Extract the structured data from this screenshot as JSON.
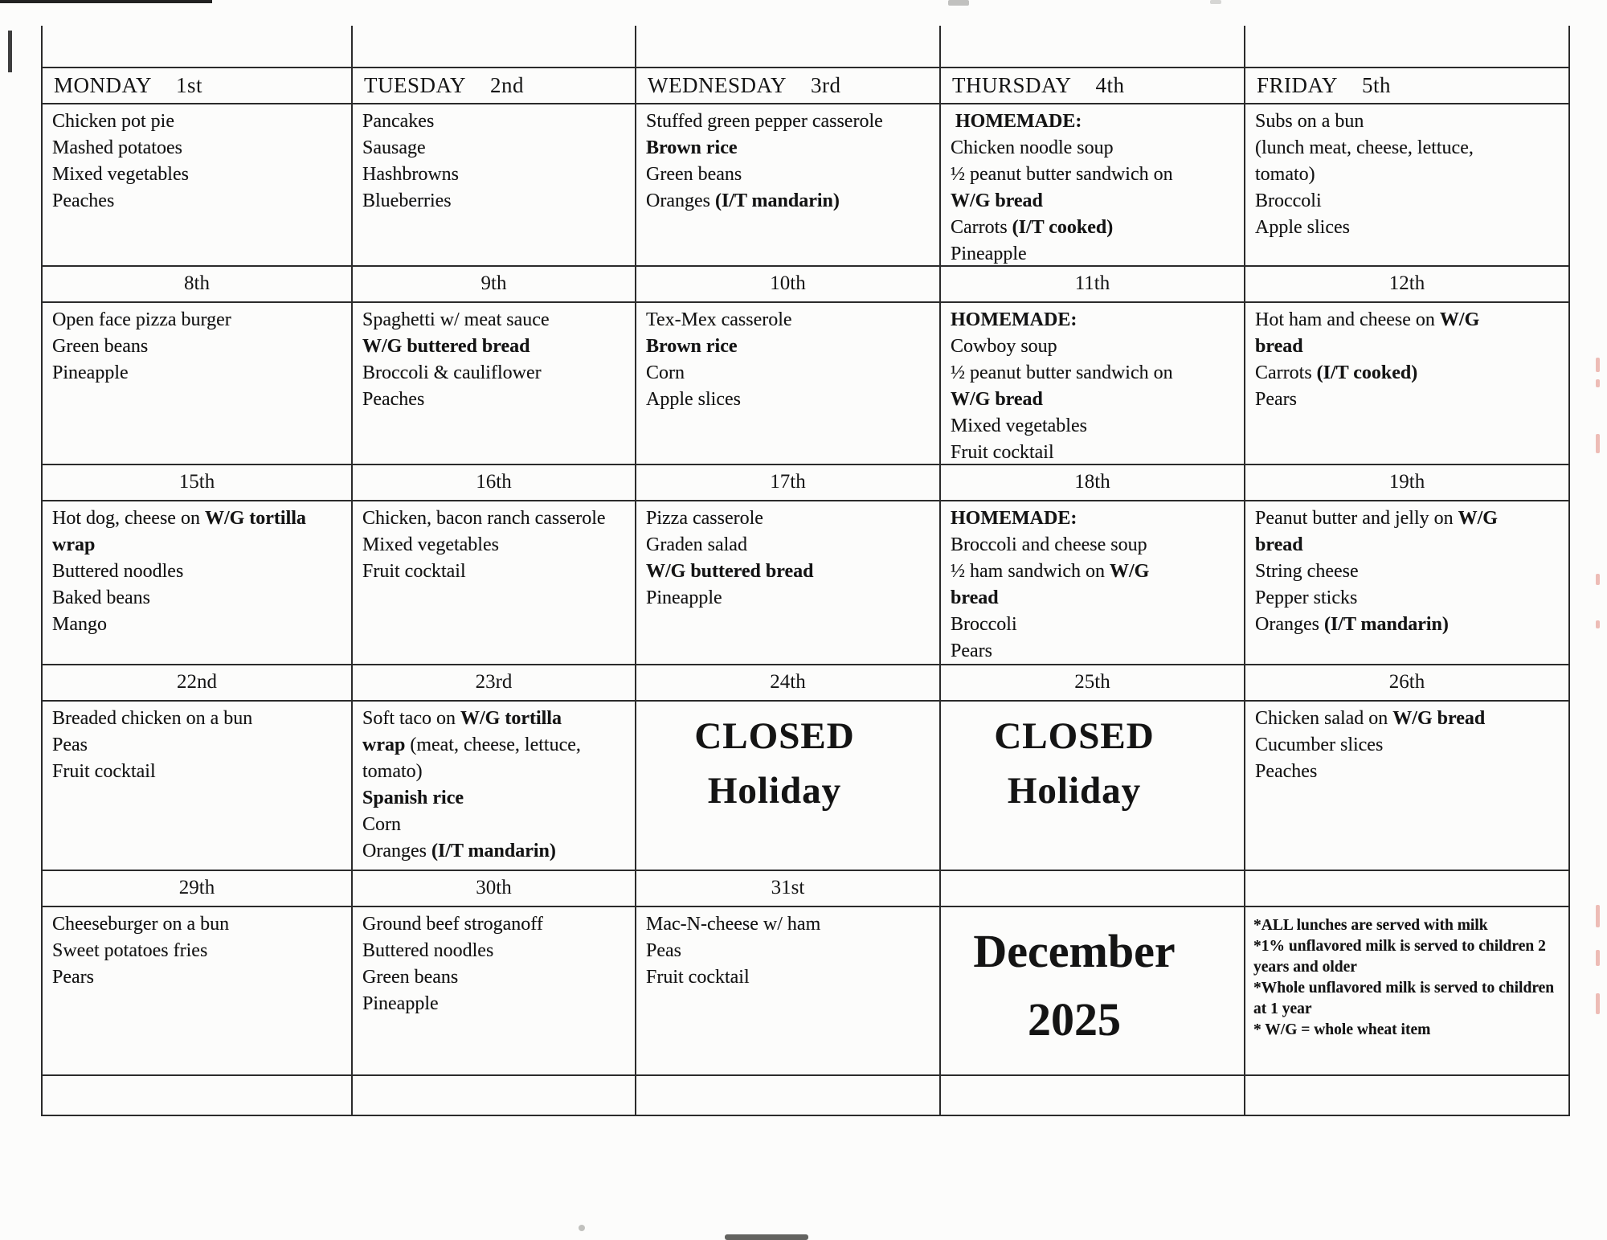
{
  "document": {
    "kind": "scanned lunch menu calendar",
    "month_title_lines": [
      "December",
      "2025"
    ],
    "ink_color": "#141414",
    "paper_color": "#fcfcfb",
    "artifact_pink_color": "#e59a90"
  },
  "calendar": {
    "header_row": [
      {
        "day": "MONDAY",
        "date": "1st"
      },
      {
        "day": "TUESDAY",
        "date": "2nd"
      },
      {
        "day": "WEDNESDAY",
        "date": "3rd"
      },
      {
        "day": "THURSDAY",
        "date": "4th"
      },
      {
        "day": "FRIDAY",
        "date": "5th"
      }
    ],
    "weeks": [
      {
        "dates": null,
        "cells": [
          {
            "type": "menu",
            "name": "menu-dec-1",
            "lines": [
              [
                "Chicken pot pie"
              ],
              [
                "Mashed potatoes"
              ],
              [
                "Mixed vegetables"
              ],
              [
                "Peaches"
              ]
            ]
          },
          {
            "type": "menu",
            "name": "menu-dec-2",
            "lines": [
              [
                "Pancakes"
              ],
              [
                "Sausage"
              ],
              [
                "Hashbrowns"
              ],
              [
                "Blueberries"
              ]
            ]
          },
          {
            "type": "menu",
            "name": "menu-dec-3",
            "lines": [
              [
                "Stuffed green pepper casserole"
              ],
              [
                {
                  "b": "Brown rice"
                }
              ],
              [
                "Green beans"
              ],
              [
                "Oranges ",
                {
                  "b": "(I/T mandarin)"
                }
              ]
            ]
          },
          {
            "type": "menu",
            "name": "menu-dec-4",
            "lines": [
              [
                " ",
                {
                  "b": "HOMEMADE:"
                }
              ],
              [
                "Chicken noodle soup"
              ],
              [
                "½ peanut butter sandwich on ",
                {
                  "b": "W/G bread"
                }
              ],
              [
                "Carrots ",
                {
                  "b": "(I/T cooked)"
                }
              ],
              [
                "Pineapple"
              ]
            ]
          },
          {
            "type": "menu",
            "name": "menu-dec-5",
            "lines": [
              [
                "Subs on a bun"
              ],
              [
                "(lunch meat, cheese, lettuce, tomato)"
              ],
              [
                "Broccoli"
              ],
              [
                "Apple slices"
              ]
            ]
          }
        ]
      },
      {
        "dates": [
          "8th",
          "9th",
          "10th",
          "11th",
          "12th"
        ],
        "cells": [
          {
            "type": "menu",
            "name": "menu-dec-8",
            "lines": [
              [
                "Open face pizza burger"
              ],
              [
                "Green beans"
              ],
              [
                "Pineapple"
              ]
            ]
          },
          {
            "type": "menu",
            "name": "menu-dec-9",
            "lines": [
              [
                "Spaghetti w/ meat sauce"
              ],
              [
                {
                  "b": "W/G buttered bread"
                }
              ],
              [
                "Broccoli & cauliflower"
              ],
              [
                "Peaches"
              ]
            ]
          },
          {
            "type": "menu",
            "name": "menu-dec-10",
            "lines": [
              [
                "Tex-Mex casserole"
              ],
              [
                {
                  "b": "Brown rice"
                }
              ],
              [
                "Corn"
              ],
              [
                "Apple slices"
              ]
            ]
          },
          {
            "type": "menu",
            "name": "menu-dec-11",
            "lines": [
              [
                {
                  "b": "HOMEMADE:"
                }
              ],
              [
                "Cowboy soup"
              ],
              [
                "½ peanut butter sandwich on ",
                {
                  "b": "W/G bread"
                }
              ],
              [
                "Mixed vegetables"
              ],
              [
                "Fruit cocktail"
              ]
            ]
          },
          {
            "type": "menu",
            "name": "menu-dec-12",
            "lines": [
              [
                "Hot ham and cheese on ",
                {
                  "b": "W/G bread"
                }
              ],
              [
                "Carrots ",
                {
                  "b": "(I/T cooked)"
                }
              ],
              [
                "Pears"
              ]
            ]
          }
        ]
      },
      {
        "dates": [
          "15th",
          "16th",
          "17th",
          "18th",
          "19th"
        ],
        "cells": [
          {
            "type": "menu",
            "name": "menu-dec-15",
            "lines": [
              [
                "Hot dog, cheese on ",
                {
                  "b": "W/G tortilla wrap"
                }
              ],
              [
                "Buttered noodles"
              ],
              [
                "Baked beans"
              ],
              [
                "Mango"
              ]
            ]
          },
          {
            "type": "menu",
            "name": "menu-dec-16",
            "lines": [
              [
                "Chicken, bacon ranch casserole"
              ],
              [
                "Mixed vegetables"
              ],
              [
                "Fruit cocktail"
              ]
            ]
          },
          {
            "type": "menu",
            "name": "menu-dec-17",
            "lines": [
              [
                "Pizza casserole"
              ],
              [
                "Graden salad"
              ],
              [
                {
                  "b": "W/G buttered bread"
                }
              ],
              [
                "Pineapple"
              ]
            ]
          },
          {
            "type": "menu",
            "name": "menu-dec-18",
            "lines": [
              [
                {
                  "b": "HOMEMADE:"
                }
              ],
              [
                "Broccoli and cheese soup"
              ],
              [
                "½ ham sandwich on ",
                {
                  "b": "W/G bread"
                }
              ],
              [
                "Broccoli"
              ],
              [
                "Pears"
              ]
            ]
          },
          {
            "type": "menu",
            "name": "menu-dec-19",
            "lines": [
              [
                "Peanut butter and jelly on ",
                {
                  "b": "W/G bread"
                }
              ],
              [
                "String cheese"
              ],
              [
                "Pepper sticks"
              ],
              [
                "Oranges ",
                {
                  "b": "(I/T mandarin)"
                }
              ]
            ]
          }
        ]
      },
      {
        "dates": [
          "22nd",
          "23rd",
          "24th",
          "25th",
          "26th"
        ],
        "cells": [
          {
            "type": "menu",
            "name": "menu-dec-22",
            "lines": [
              [
                "Breaded chicken on a bun"
              ],
              [
                "Peas"
              ],
              [
                "Fruit cocktail"
              ]
            ]
          },
          {
            "type": "menu",
            "name": "menu-dec-23",
            "lines": [
              [
                "Soft taco on ",
                {
                  "b": "W/G tortilla wrap"
                },
                " (meat, cheese, lettuce, tomato)"
              ],
              [
                {
                  "b": "Spanish rice"
                }
              ],
              [
                "Corn"
              ],
              [
                "Oranges ",
                {
                  "b": "(I/T mandarin)"
                }
              ]
            ]
          },
          {
            "type": "closed",
            "name": "closed-dec-24",
            "lines": [
              "CLOSED",
              "Holiday"
            ]
          },
          {
            "type": "closed",
            "name": "closed-dec-25",
            "lines": [
              "CLOSED",
              "Holiday"
            ]
          },
          {
            "type": "menu",
            "name": "menu-dec-26",
            "lines": [
              [
                "Chicken salad on ",
                {
                  "b": "W/G bread"
                }
              ],
              [
                "Cucumber slices"
              ],
              [
                "Peaches"
              ]
            ]
          }
        ]
      },
      {
        "dates": [
          "29th",
          "30th",
          "31st",
          "",
          ""
        ],
        "cells": [
          {
            "type": "menu",
            "name": "menu-dec-29",
            "lines": [
              [
                "Cheeseburger on a bun"
              ],
              [
                "Sweet potatoes fries"
              ],
              [
                "Pears"
              ]
            ]
          },
          {
            "type": "menu",
            "name": "menu-dec-30",
            "lines": [
              [
                "Ground beef stroganoff"
              ],
              [
                "Buttered noodles"
              ],
              [
                "Green beans"
              ],
              [
                "Pineapple"
              ]
            ]
          },
          {
            "type": "menu",
            "name": "menu-dec-31",
            "lines": [
              [
                "Mac-N-cheese w/ ham"
              ],
              [
                "Peas"
              ],
              [
                "Fruit cocktail"
              ]
            ]
          },
          {
            "type": "month",
            "name": "month-title-cell",
            "lines": [
              "December",
              "2025"
            ]
          },
          {
            "type": "notes",
            "name": "notes-cell",
            "lines": [
              "*ALL lunches are served with milk",
              "*1% unflavored milk is served to children 2 years and older",
              "*Whole unflavored milk is served to children at 1 year",
              "* W/G = whole wheat item"
            ]
          }
        ]
      }
    ]
  }
}
